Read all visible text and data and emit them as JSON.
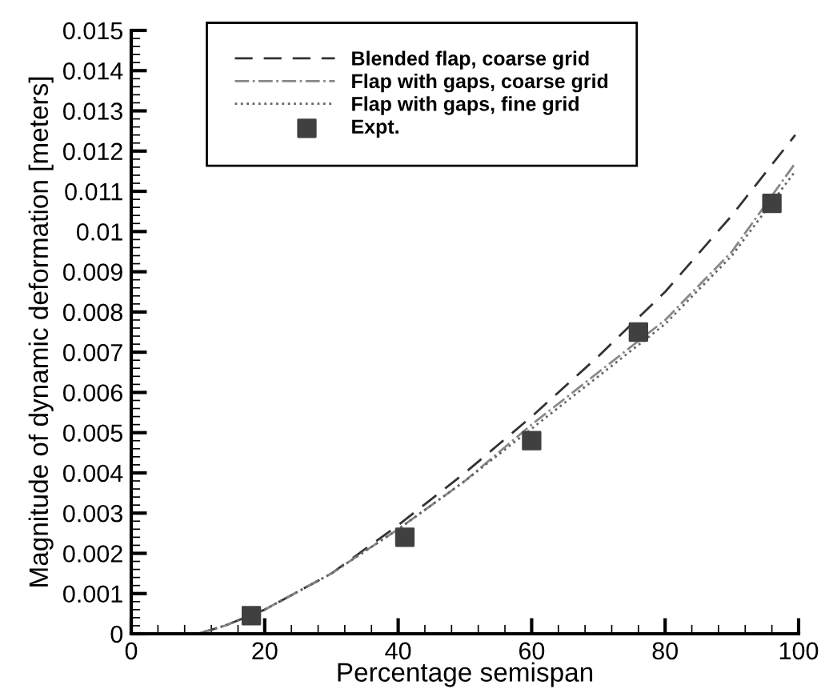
{
  "chart_data": {
    "type": "line",
    "xlabel": "Percentage semispan",
    "ylabel": "Magnitude of dynamic deformation [meters]",
    "xlim": [
      0,
      100
    ],
    "xticks": [
      0,
      20,
      40,
      60,
      80,
      100
    ],
    "ylim": [
      0,
      0.015
    ],
    "yticks": [
      0,
      0.001,
      0.002,
      0.003,
      0.004,
      0.005,
      0.006,
      0.007,
      0.008,
      0.009,
      0.01,
      0.011,
      0.012,
      0.013,
      0.014,
      0.015
    ],
    "grid": false,
    "legend": "top",
    "series": [
      {
        "name": "Blended flap, coarse grid",
        "line_style": "dashed",
        "color": "#333333",
        "x": [
          10,
          14,
          20,
          30,
          40,
          50,
          60,
          70,
          80,
          90,
          99.5
        ],
        "values": [
          0,
          0.0002,
          0.0006,
          0.0015,
          0.0027,
          0.004,
          0.0054,
          0.0069,
          0.0085,
          0.0104,
          0.0124
        ]
      },
      {
        "name": "Flap with gaps, coarse grid",
        "line_style": "dashdot",
        "color": "#888888",
        "x": [
          10,
          14,
          20,
          30,
          40,
          50,
          60,
          70,
          80,
          90,
          99.5
        ],
        "values": [
          0,
          0.0002,
          0.0006,
          0.0015,
          0.0026,
          0.0038,
          0.0052,
          0.0065,
          0.0078,
          0.0095,
          0.0117
        ]
      },
      {
        "name": "Flap with gaps, fine grid",
        "line_style": "dotted",
        "color": "#666666",
        "x": [
          10,
          14,
          20,
          30,
          40,
          50,
          60,
          70,
          80,
          90,
          99.5
        ],
        "values": [
          0,
          0.0002,
          0.0006,
          0.0015,
          0.0026,
          0.0038,
          0.0051,
          0.0064,
          0.0077,
          0.0094,
          0.0115
        ]
      },
      {
        "name": "Expt.",
        "type": "scatter",
        "marker": "square",
        "color": "#404040",
        "x": [
          18,
          41,
          60,
          76,
          96
        ],
        "values": [
          0.00045,
          0.0024,
          0.0048,
          0.0075,
          0.0107
        ]
      }
    ]
  }
}
